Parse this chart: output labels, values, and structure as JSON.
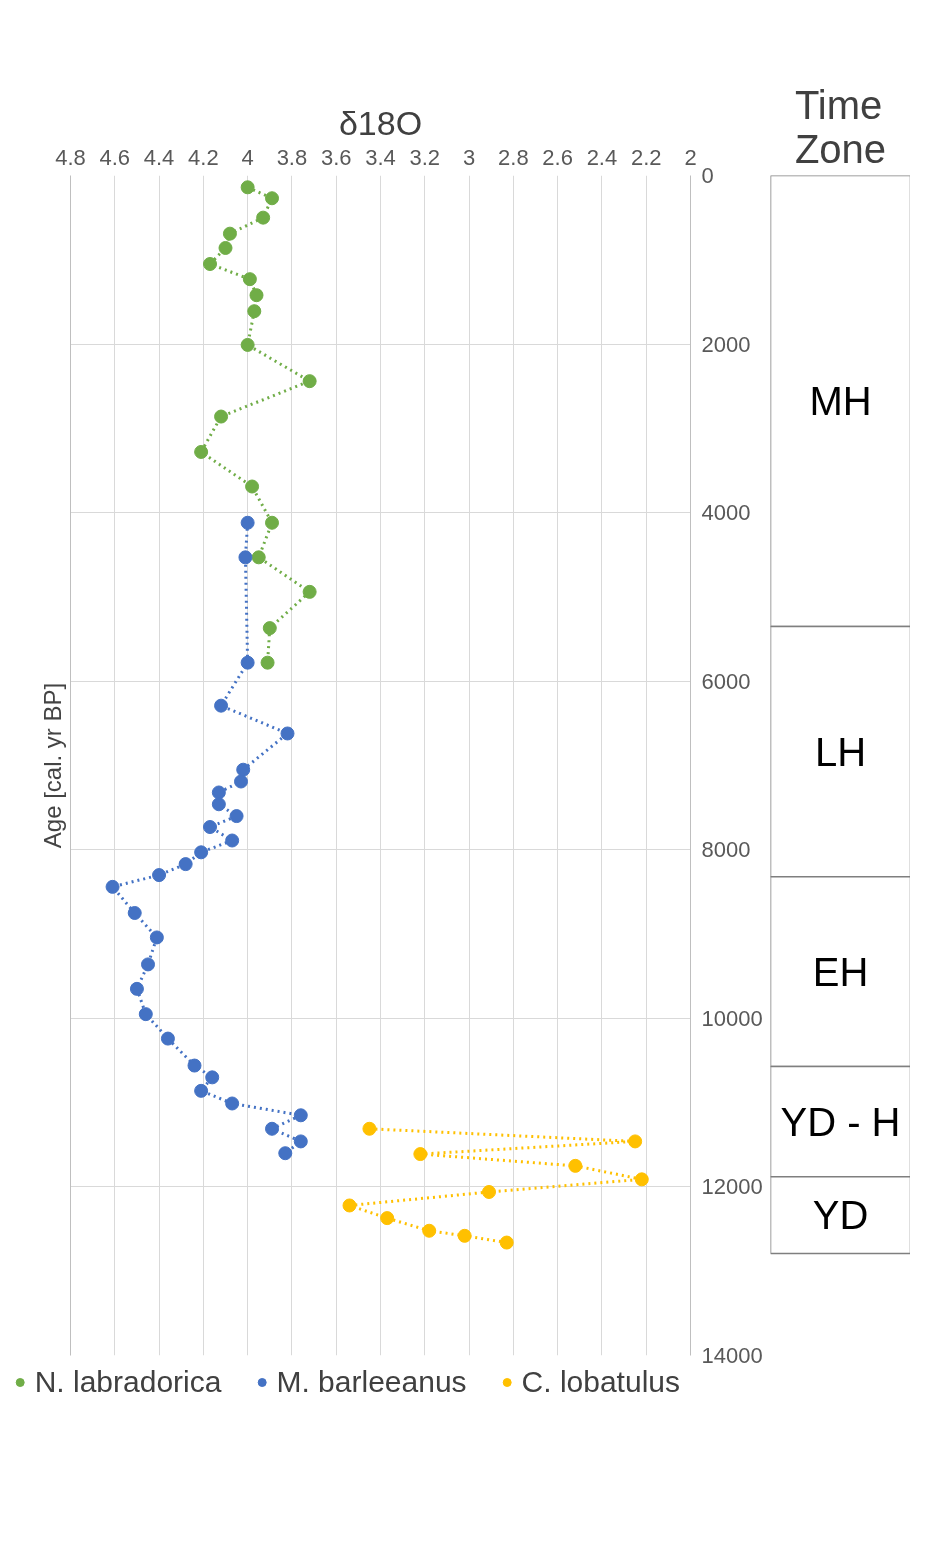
{
  "chart_data": [
    {
      "type": "line",
      "title": "δ18O",
      "ylabel": "Age [cal. yr BP]",
      "xlim": [
        4.8,
        2
      ],
      "xticks": [
        4.8,
        4.6,
        4.4,
        4.2,
        4,
        3.8,
        3.6,
        3.4,
        3.2,
        3,
        2.8,
        2.6,
        2.4,
        2.2,
        2
      ],
      "ylim": [
        14000,
        0
      ],
      "yticks": [
        0,
        2000,
        4000,
        6000,
        8000,
        10000,
        12000,
        14000
      ],
      "grid": true,
      "legend": "bottom",
      "marker": "circle",
      "line_style": "dotted",
      "series": [
        {
          "name": "N. labradorica",
          "color": "#70ad47",
          "x": [
            4.0,
            3.89,
            3.93,
            4.08,
            4.1,
            4.17,
            3.99,
            3.96,
            3.97,
            4.0,
            3.72,
            4.12,
            4.21,
            3.98,
            3.89,
            3.95,
            3.72,
            3.9,
            3.91
          ],
          "values": [
            140,
            270,
            500,
            690,
            860,
            1050,
            1230,
            1420,
            1610,
            2010,
            2440,
            2860,
            3280,
            3690,
            4120,
            4530,
            4940,
            5370,
            5780
          ]
        },
        {
          "name": "M. barleeanus",
          "color": "#4472c4",
          "x": [
            4.0,
            4.01,
            4.0,
            4.12,
            3.82,
            4.02,
            4.03,
            4.13,
            4.13,
            4.05,
            4.17,
            4.07,
            4.21,
            4.28,
            4.4,
            4.61,
            4.51,
            4.41,
            4.45,
            4.5,
            4.46,
            4.36,
            4.24,
            4.16,
            4.21,
            4.07,
            3.76,
            3.89,
            3.76,
            3.83
          ],
          "values": [
            4120,
            4530,
            5780,
            6290,
            6620,
            7050,
            7190,
            7320,
            7460,
            7600,
            7730,
            7890,
            8030,
            8170,
            8300,
            8440,
            8750,
            9040,
            9360,
            9650,
            9950,
            10240,
            10560,
            10700,
            10860,
            11010,
            11150,
            11310,
            11460,
            11600
          ]
        },
        {
          "name": "C. lobatulus",
          "color": "#ffc000",
          "x": [
            3.45,
            2.25,
            3.22,
            2.52,
            2.22,
            2.91,
            3.54,
            3.37,
            3.18,
            3.02,
            2.83
          ],
          "values": [
            11310,
            11460,
            11610,
            11750,
            11910,
            12060,
            12220,
            12370,
            12520,
            12580,
            12660
          ]
        }
      ]
    },
    {
      "type": "bar",
      "title": "Time Zone",
      "stacked": true,
      "categories": [
        null
      ],
      "ylim": [
        14000,
        0
      ],
      "tick_labels": false,
      "series": [
        {
          "name": "MH",
          "color": "#ffffff",
          "values": [
            5350
          ]
        },
        {
          "name": "LH",
          "color": "#ffffff",
          "values": [
            2970
          ]
        },
        {
          "name": "EH",
          "color": "#ffffff",
          "values": [
            2250
          ]
        },
        {
          "name": "YD - H",
          "color": "#ffffff",
          "values": [
            1310
          ]
        },
        {
          "name": "YD",
          "color": "#ffffff",
          "values": [
            910
          ]
        }
      ]
    }
  ]
}
